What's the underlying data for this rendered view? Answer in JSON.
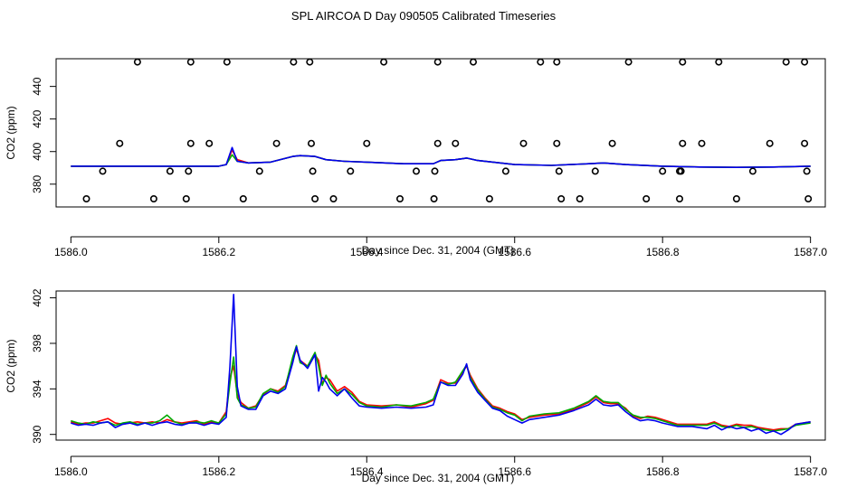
{
  "figure_title": "SPL AIRCOA D  Day 090505  Calibrated Timeseries",
  "chart_data": [
    {
      "type": "line",
      "name": "overview",
      "title": "",
      "xlabel": "Day since Dec. 31, 2004 (GMT)",
      "ylabel": "CO2 (ppm)",
      "xlim": [
        1585.98,
        1587.02
      ],
      "ylim": [
        366,
        457
      ],
      "xticks": [
        1586.0,
        1586.2,
        1586.4,
        1586.6,
        1586.8,
        1587.0
      ],
      "xtick_labels": [
        "1586.0",
        "1586.2",
        "1586.4",
        "1586.6",
        "1586.8",
        "1587.0"
      ],
      "yticks": [
        380,
        400,
        420,
        440
      ],
      "ytick_labels": [
        "380",
        "400",
        "420",
        "440"
      ],
      "x": [
        1586.0,
        1586.05,
        1586.1,
        1586.15,
        1586.2,
        1586.21,
        1586.218,
        1586.225,
        1586.24,
        1586.27,
        1586.3,
        1586.31,
        1586.33,
        1586.345,
        1586.37,
        1586.4,
        1586.45,
        1586.49,
        1586.5,
        1586.52,
        1586.535,
        1586.55,
        1586.6,
        1586.65,
        1586.7,
        1586.72,
        1586.75,
        1586.8,
        1586.85,
        1586.9,
        1586.95,
        1587.0
      ],
      "series": [
        {
          "name": "red",
          "color": "#ff0000",
          "values": [
            391.0,
            391.0,
            391.0,
            391.0,
            391.0,
            392.0,
            401.0,
            395.0,
            393.0,
            393.5,
            397.0,
            397.5,
            397.0,
            395.0,
            394.0,
            393.5,
            392.5,
            392.5,
            394.5,
            395.0,
            396.0,
            394.5,
            392.0,
            391.5,
            392.5,
            393.0,
            392.0,
            391.0,
            390.5,
            390.3,
            390.5,
            391.0
          ]
        },
        {
          "name": "green",
          "color": "#00aa00",
          "values": [
            391.0,
            391.0,
            391.0,
            391.0,
            391.0,
            392.0,
            398.0,
            394.0,
            393.0,
            393.5,
            397.0,
            397.5,
            397.0,
            395.0,
            394.0,
            393.5,
            392.5,
            392.5,
            394.5,
            395.0,
            396.0,
            394.5,
            392.0,
            391.5,
            392.5,
            393.0,
            392.0,
            391.0,
            390.5,
            390.3,
            390.5,
            391.0
          ]
        },
        {
          "name": "blue",
          "color": "#0000ee",
          "values": [
            391.0,
            391.0,
            391.0,
            391.0,
            391.0,
            392.0,
            402.5,
            394.0,
            393.0,
            393.5,
            397.0,
            397.5,
            397.0,
            395.0,
            394.0,
            393.5,
            392.5,
            392.5,
            394.5,
            395.0,
            396.0,
            394.5,
            392.0,
            391.5,
            392.5,
            393.0,
            392.0,
            391.0,
            390.5,
            390.3,
            390.5,
            391.0
          ]
        }
      ],
      "flags": [
        {
          "x": 1586.09,
          "y": 455
        },
        {
          "x": 1586.162,
          "y": 455
        },
        {
          "x": 1586.211,
          "y": 455
        },
        {
          "x": 1586.301,
          "y": 455
        },
        {
          "x": 1586.323,
          "y": 455
        },
        {
          "x": 1586.423,
          "y": 455
        },
        {
          "x": 1586.496,
          "y": 455
        },
        {
          "x": 1586.544,
          "y": 455
        },
        {
          "x": 1586.635,
          "y": 455
        },
        {
          "x": 1586.657,
          "y": 455
        },
        {
          "x": 1586.754,
          "y": 455
        },
        {
          "x": 1586.827,
          "y": 455
        },
        {
          "x": 1586.876,
          "y": 455
        },
        {
          "x": 1586.967,
          "y": 455
        },
        {
          "x": 1586.992,
          "y": 455
        },
        {
          "x": 1586.066,
          "y": 405
        },
        {
          "x": 1586.162,
          "y": 405
        },
        {
          "x": 1586.187,
          "y": 405
        },
        {
          "x": 1586.278,
          "y": 405
        },
        {
          "x": 1586.325,
          "y": 405
        },
        {
          "x": 1586.4,
          "y": 405
        },
        {
          "x": 1586.496,
          "y": 405
        },
        {
          "x": 1586.52,
          "y": 405
        },
        {
          "x": 1586.612,
          "y": 405
        },
        {
          "x": 1586.657,
          "y": 405
        },
        {
          "x": 1586.732,
          "y": 405
        },
        {
          "x": 1586.827,
          "y": 405
        },
        {
          "x": 1586.853,
          "y": 405
        },
        {
          "x": 1586.945,
          "y": 405
        },
        {
          "x": 1586.992,
          "y": 405
        },
        {
          "x": 1586.043,
          "y": 388
        },
        {
          "x": 1586.134,
          "y": 388
        },
        {
          "x": 1586.159,
          "y": 388
        },
        {
          "x": 1586.255,
          "y": 388
        },
        {
          "x": 1586.327,
          "y": 388
        },
        {
          "x": 1586.378,
          "y": 388
        },
        {
          "x": 1586.467,
          "y": 388
        },
        {
          "x": 1586.492,
          "y": 388
        },
        {
          "x": 1586.588,
          "y": 388
        },
        {
          "x": 1586.66,
          "y": 388
        },
        {
          "x": 1586.709,
          "y": 388
        },
        {
          "x": 1586.8,
          "y": 388
        },
        {
          "x": 1586.823,
          "y": 388
        },
        {
          "x": 1586.825,
          "y": 388
        },
        {
          "x": 1586.922,
          "y": 388
        },
        {
          "x": 1586.995,
          "y": 388
        },
        {
          "x": 1586.021,
          "y": 371
        },
        {
          "x": 1586.112,
          "y": 371
        },
        {
          "x": 1586.156,
          "y": 371
        },
        {
          "x": 1586.233,
          "y": 371
        },
        {
          "x": 1586.33,
          "y": 371
        },
        {
          "x": 1586.355,
          "y": 371
        },
        {
          "x": 1586.445,
          "y": 371
        },
        {
          "x": 1586.491,
          "y": 371
        },
        {
          "x": 1586.566,
          "y": 371
        },
        {
          "x": 1586.663,
          "y": 371
        },
        {
          "x": 1586.688,
          "y": 371
        },
        {
          "x": 1586.778,
          "y": 371
        },
        {
          "x": 1586.823,
          "y": 371
        },
        {
          "x": 1586.9,
          "y": 371
        },
        {
          "x": 1586.997,
          "y": 371
        }
      ]
    },
    {
      "type": "line",
      "name": "detail",
      "title": "",
      "xlabel": "Day since Dec. 31, 2004 (GMT)",
      "ylabel": "CO2 (ppm)",
      "xlim": [
        1585.98,
        1587.02
      ],
      "ylim": [
        389.5,
        402.6
      ],
      "xticks": [
        1586.0,
        1586.2,
        1586.4,
        1586.6,
        1586.8,
        1587.0
      ],
      "xtick_labels": [
        "1586.0",
        "1586.2",
        "1586.4",
        "1586.6",
        "1586.8",
        "1587.0"
      ],
      "yticks": [
        390,
        394,
        398,
        402
      ],
      "ytick_labels": [
        "390",
        "394",
        "398",
        "402"
      ],
      "x": [
        1586.0,
        1586.01,
        1586.02,
        1586.03,
        1586.04,
        1586.05,
        1586.06,
        1586.07,
        1586.08,
        1586.09,
        1586.1,
        1586.11,
        1586.12,
        1586.13,
        1586.14,
        1586.15,
        1586.16,
        1586.17,
        1586.18,
        1586.19,
        1586.2,
        1586.21,
        1586.215,
        1586.22,
        1586.225,
        1586.23,
        1586.24,
        1586.25,
        1586.26,
        1586.27,
        1586.28,
        1586.29,
        1586.3,
        1586.305,
        1586.31,
        1586.32,
        1586.33,
        1586.335,
        1586.34,
        1586.345,
        1586.35,
        1586.36,
        1586.37,
        1586.38,
        1586.39,
        1586.4,
        1586.42,
        1586.44,
        1586.46,
        1586.48,
        1586.49,
        1586.5,
        1586.51,
        1586.52,
        1586.53,
        1586.535,
        1586.54,
        1586.55,
        1586.56,
        1586.57,
        1586.58,
        1586.59,
        1586.6,
        1586.61,
        1586.62,
        1586.64,
        1586.66,
        1586.68,
        1586.7,
        1586.71,
        1586.72,
        1586.73,
        1586.74,
        1586.75,
        1586.76,
        1586.77,
        1586.78,
        1586.79,
        1586.8,
        1586.82,
        1586.84,
        1586.86,
        1586.87,
        1586.88,
        1586.89,
        1586.9,
        1586.91,
        1586.92,
        1586.93,
        1586.94,
        1586.95,
        1586.96,
        1586.97,
        1586.98,
        1587.0
      ],
      "series": [
        {
          "name": "red",
          "color": "#ff0000",
          "values": [
            391.1,
            390.9,
            391.0,
            391.0,
            391.2,
            391.4,
            391.0,
            390.9,
            391.0,
            391.1,
            391.0,
            391.1,
            391.0,
            391.3,
            391.1,
            391.0,
            391.1,
            391.2,
            390.9,
            391.1,
            391.0,
            392.0,
            395.0,
            396.0,
            393.5,
            392.8,
            392.3,
            392.5,
            393.5,
            394.0,
            393.8,
            394.3,
            396.5,
            397.5,
            396.5,
            396.0,
            397.0,
            396.5,
            394.5,
            395.0,
            394.8,
            393.8,
            394.2,
            393.7,
            392.9,
            392.6,
            392.5,
            392.6,
            392.4,
            392.7,
            393.0,
            394.8,
            394.5,
            394.5,
            395.5,
            396.0,
            395.2,
            394.0,
            393.2,
            392.5,
            392.3,
            392.0,
            391.8,
            391.3,
            391.5,
            391.7,
            391.8,
            392.2,
            392.8,
            393.3,
            392.8,
            392.7,
            392.7,
            392.3,
            391.6,
            391.4,
            391.6,
            391.5,
            391.3,
            390.9,
            390.9,
            390.9,
            391.1,
            390.8,
            390.7,
            390.9,
            390.8,
            390.8,
            390.6,
            390.5,
            390.4,
            390.5,
            390.5,
            390.9,
            391.1
          ]
        },
        {
          "name": "green",
          "color": "#00aa00",
          "values": [
            391.2,
            391.0,
            390.9,
            391.1,
            391.0,
            391.1,
            390.8,
            391.0,
            391.1,
            390.9,
            391.0,
            391.0,
            391.2,
            391.7,
            391.1,
            390.9,
            391.0,
            391.1,
            391.0,
            391.2,
            391.0,
            391.8,
            394.5,
            396.8,
            393.2,
            392.6,
            392.3,
            392.4,
            393.6,
            394.0,
            393.7,
            394.2,
            396.8,
            397.8,
            396.3,
            396.0,
            397.2,
            396.0,
            394.3,
            395.2,
            394.5,
            393.6,
            394.0,
            393.5,
            392.8,
            392.5,
            392.4,
            392.6,
            392.5,
            392.8,
            393.1,
            394.6,
            394.4,
            394.6,
            395.6,
            396.1,
            395.0,
            393.9,
            393.1,
            392.4,
            392.2,
            391.9,
            391.7,
            391.2,
            391.6,
            391.8,
            391.9,
            392.3,
            392.9,
            393.4,
            392.9,
            392.8,
            392.8,
            392.2,
            391.7,
            391.5,
            391.5,
            391.4,
            391.2,
            390.8,
            390.8,
            390.8,
            391.0,
            390.7,
            390.6,
            390.8,
            390.6,
            390.7,
            390.5,
            390.4,
            390.3,
            390.4,
            390.5,
            390.8,
            391.0
          ]
        },
        {
          "name": "blue",
          "color": "#0000ee",
          "values": [
            391.0,
            390.8,
            390.9,
            390.8,
            391.0,
            391.1,
            390.6,
            390.9,
            391.0,
            390.8,
            391.0,
            390.8,
            391.0,
            391.1,
            390.9,
            390.8,
            391.0,
            391.0,
            390.8,
            391.0,
            390.9,
            391.5,
            396.0,
            402.3,
            394.2,
            392.5,
            392.2,
            392.2,
            393.4,
            393.8,
            393.6,
            394.0,
            396.3,
            397.7,
            396.5,
            395.8,
            397.0,
            393.8,
            395.0,
            394.6,
            394.0,
            393.4,
            394.0,
            393.2,
            392.5,
            392.4,
            392.3,
            392.4,
            392.3,
            392.4,
            392.6,
            394.6,
            394.3,
            394.3,
            395.3,
            396.2,
            394.8,
            393.7,
            393.0,
            392.3,
            392.1,
            391.6,
            391.3,
            391.0,
            391.3,
            391.5,
            391.7,
            392.1,
            392.6,
            393.1,
            392.6,
            392.5,
            392.6,
            392.0,
            391.5,
            391.2,
            391.3,
            391.2,
            391.0,
            390.7,
            390.7,
            390.5,
            390.8,
            390.4,
            390.7,
            390.5,
            390.6,
            390.3,
            390.5,
            390.1,
            390.3,
            390.0,
            390.4,
            390.9,
            391.1
          ]
        }
      ]
    }
  ]
}
